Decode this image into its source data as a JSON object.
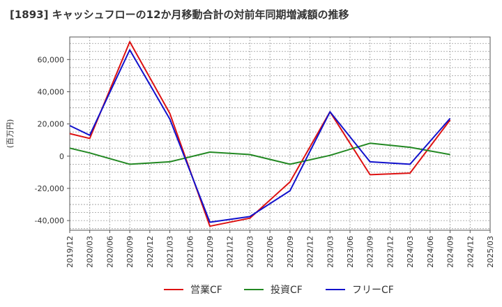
{
  "chart_data": {
    "type": "line",
    "title": "[1893]  キャッシュフローの12か月移動合計の対前年同期増減額の推移",
    "ylabel": "(百万円)",
    "xlabel": "",
    "ylim": [
      -46000,
      74000
    ],
    "yticks": [
      -40000,
      -20000,
      0,
      20000,
      40000,
      60000
    ],
    "ytick_labels": [
      "-40,000",
      "-20,000",
      "0",
      "20,000",
      "40,000",
      "60,000"
    ],
    "categories": [
      "2019/12",
      "2020/03",
      "2020/06",
      "2020/09",
      "2020/12",
      "2021/03",
      "2021/06",
      "2021/09",
      "2021/12",
      "2022/03",
      "2022/06",
      "2022/09",
      "2022/12",
      "2023/03",
      "2023/06",
      "2023/09",
      "2023/12",
      "2024/03",
      "2024/06",
      "2024/09",
      "2024/12",
      "2025/03"
    ],
    "series": [
      {
        "name": "営業CF",
        "color": "#dd1111",
        "values": [
          14000,
          11000,
          null,
          71000,
          null,
          26500,
          null,
          -43500,
          null,
          -38500,
          null,
          -16000,
          null,
          27500,
          null,
          -11500,
          null,
          -10500,
          null,
          22500,
          null,
          null
        ]
      },
      {
        "name": "投資CF",
        "color": "#228822",
        "values": [
          5000,
          2000,
          null,
          -5000,
          null,
          -3500,
          null,
          2500,
          null,
          1000,
          null,
          -5000,
          null,
          500,
          null,
          8000,
          null,
          5500,
          null,
          1000,
          null,
          null
        ]
      },
      {
        "name": "フリーCF",
        "color": "#1111cc",
        "values": [
          19000,
          13000,
          null,
          66000,
          null,
          23000,
          null,
          -41000,
          null,
          -37500,
          null,
          -21500,
          null,
          27500,
          null,
          -3500,
          null,
          -5000,
          null,
          23500,
          null,
          null
        ]
      }
    ],
    "grid": true,
    "legend": "bottom"
  }
}
